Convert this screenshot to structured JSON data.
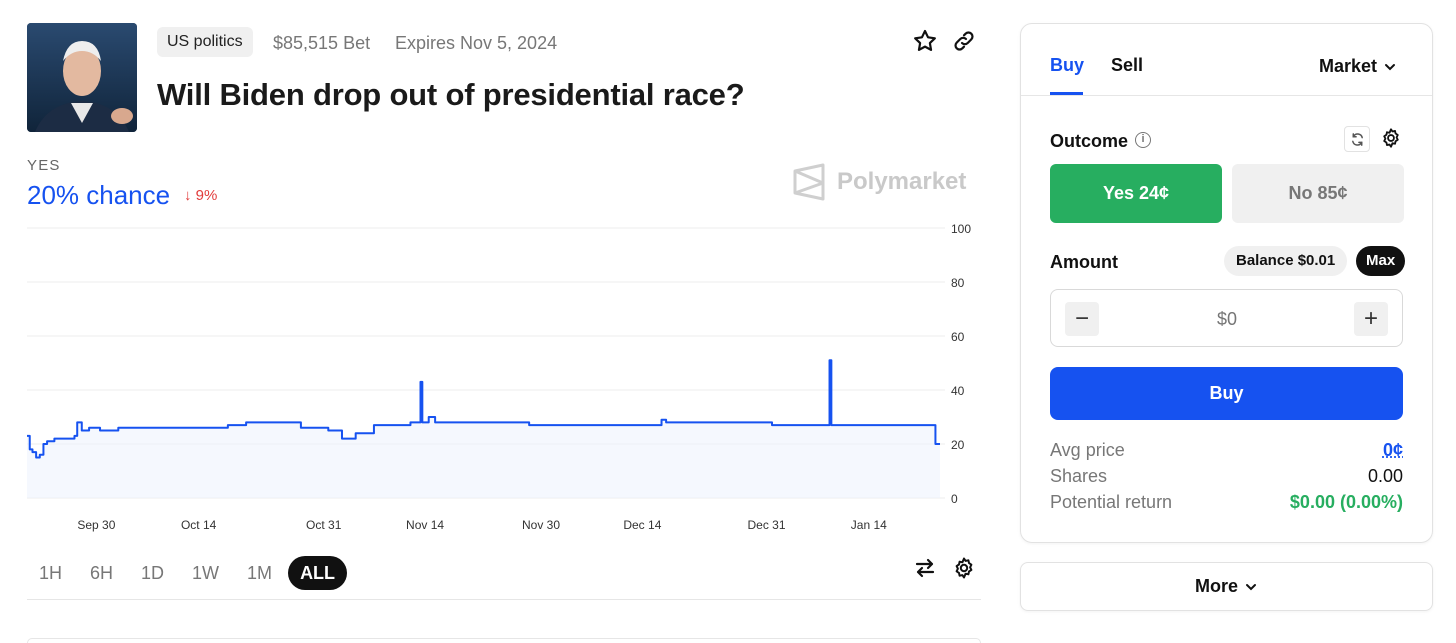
{
  "header": {
    "category": "US politics",
    "bet_volume": "$85,515 Bet",
    "expiry": "Expires Nov 5, 2024",
    "title": "Will Biden drop out of presidential race?"
  },
  "stats": {
    "outcome_label": "YES",
    "chance": "20% chance",
    "delta": "9%",
    "brand": "Polymarket"
  },
  "chart_data": {
    "type": "line",
    "ylim": [
      0,
      100
    ],
    "y_ticks": [
      "100",
      "80",
      "60",
      "40",
      "20",
      "0"
    ],
    "x_ticks": [
      {
        "label": "Sep 30",
        "t": 0.076
      },
      {
        "label": "Oct 14",
        "t": 0.188
      },
      {
        "label": "Oct 31",
        "t": 0.325
      },
      {
        "label": "Nov 14",
        "t": 0.436
      },
      {
        "label": "Nov 30",
        "t": 0.563
      },
      {
        "label": "Dec 14",
        "t": 0.674
      },
      {
        "label": "Dec 31",
        "t": 0.81
      },
      {
        "label": "Jan 14",
        "t": 0.922
      }
    ],
    "series": [
      {
        "color": "#1652f0",
        "points": [
          [
            0.0,
            23
          ],
          [
            0.003,
            18
          ],
          [
            0.006,
            17
          ],
          [
            0.01,
            15
          ],
          [
            0.014,
            16
          ],
          [
            0.018,
            20
          ],
          [
            0.022,
            21
          ],
          [
            0.03,
            22
          ],
          [
            0.04,
            22
          ],
          [
            0.052,
            23
          ],
          [
            0.055,
            28
          ],
          [
            0.06,
            25
          ],
          [
            0.068,
            26
          ],
          [
            0.08,
            25
          ],
          [
            0.1,
            26
          ],
          [
            0.15,
            26
          ],
          [
            0.22,
            27
          ],
          [
            0.24,
            28
          ],
          [
            0.27,
            28
          ],
          [
            0.3,
            26
          ],
          [
            0.33,
            25
          ],
          [
            0.345,
            22
          ],
          [
            0.36,
            24
          ],
          [
            0.38,
            27
          ],
          [
            0.42,
            28
          ],
          [
            0.429,
            28
          ],
          [
            0.431,
            43
          ],
          [
            0.433,
            28
          ],
          [
            0.44,
            30
          ],
          [
            0.447,
            28
          ],
          [
            0.5,
            28
          ],
          [
            0.55,
            27
          ],
          [
            0.6,
            27
          ],
          [
            0.69,
            27
          ],
          [
            0.695,
            29
          ],
          [
            0.7,
            28
          ],
          [
            0.75,
            28
          ],
          [
            0.816,
            27
          ],
          [
            0.87,
            27
          ],
          [
            0.877,
            27
          ],
          [
            0.879,
            51
          ],
          [
            0.881,
            27
          ],
          [
            0.95,
            27
          ],
          [
            0.99,
            27
          ],
          [
            0.995,
            20
          ],
          [
            1.0,
            20
          ]
        ]
      }
    ]
  },
  "ranges": {
    "items": [
      "1H",
      "6H",
      "1D",
      "1W",
      "1M",
      "ALL"
    ],
    "active": "ALL"
  },
  "trade": {
    "tab_buy": "Buy",
    "tab_sell": "Sell",
    "order_type": "Market",
    "outcome_label": "Outcome",
    "info_glyph": "i",
    "yes_option": "Yes 24¢",
    "no_option": "No 85¢",
    "amount_label": "Amount",
    "balance": "Balance $0.01",
    "max": "Max",
    "amount_placeholder": "$0",
    "minus": "−",
    "plus": "+",
    "buy_button": "Buy",
    "avg_price_label": "Avg price",
    "avg_price_value": "0¢",
    "shares_label": "Shares",
    "shares_value": "0.00",
    "return_label": "Potential return",
    "return_value": "$0.00 (0.00%)"
  },
  "more": {
    "label": "More"
  },
  "colors": {
    "accent": "#1652f0",
    "yes_green": "#27ae60",
    "down_red": "#e23b3b"
  },
  "icons": [
    "star-icon",
    "link-icon",
    "arrow-down-icon",
    "polymarket-logo-icon",
    "swap-icon",
    "gear-icon",
    "refresh-icon",
    "info-icon",
    "chevron-down-icon"
  ]
}
